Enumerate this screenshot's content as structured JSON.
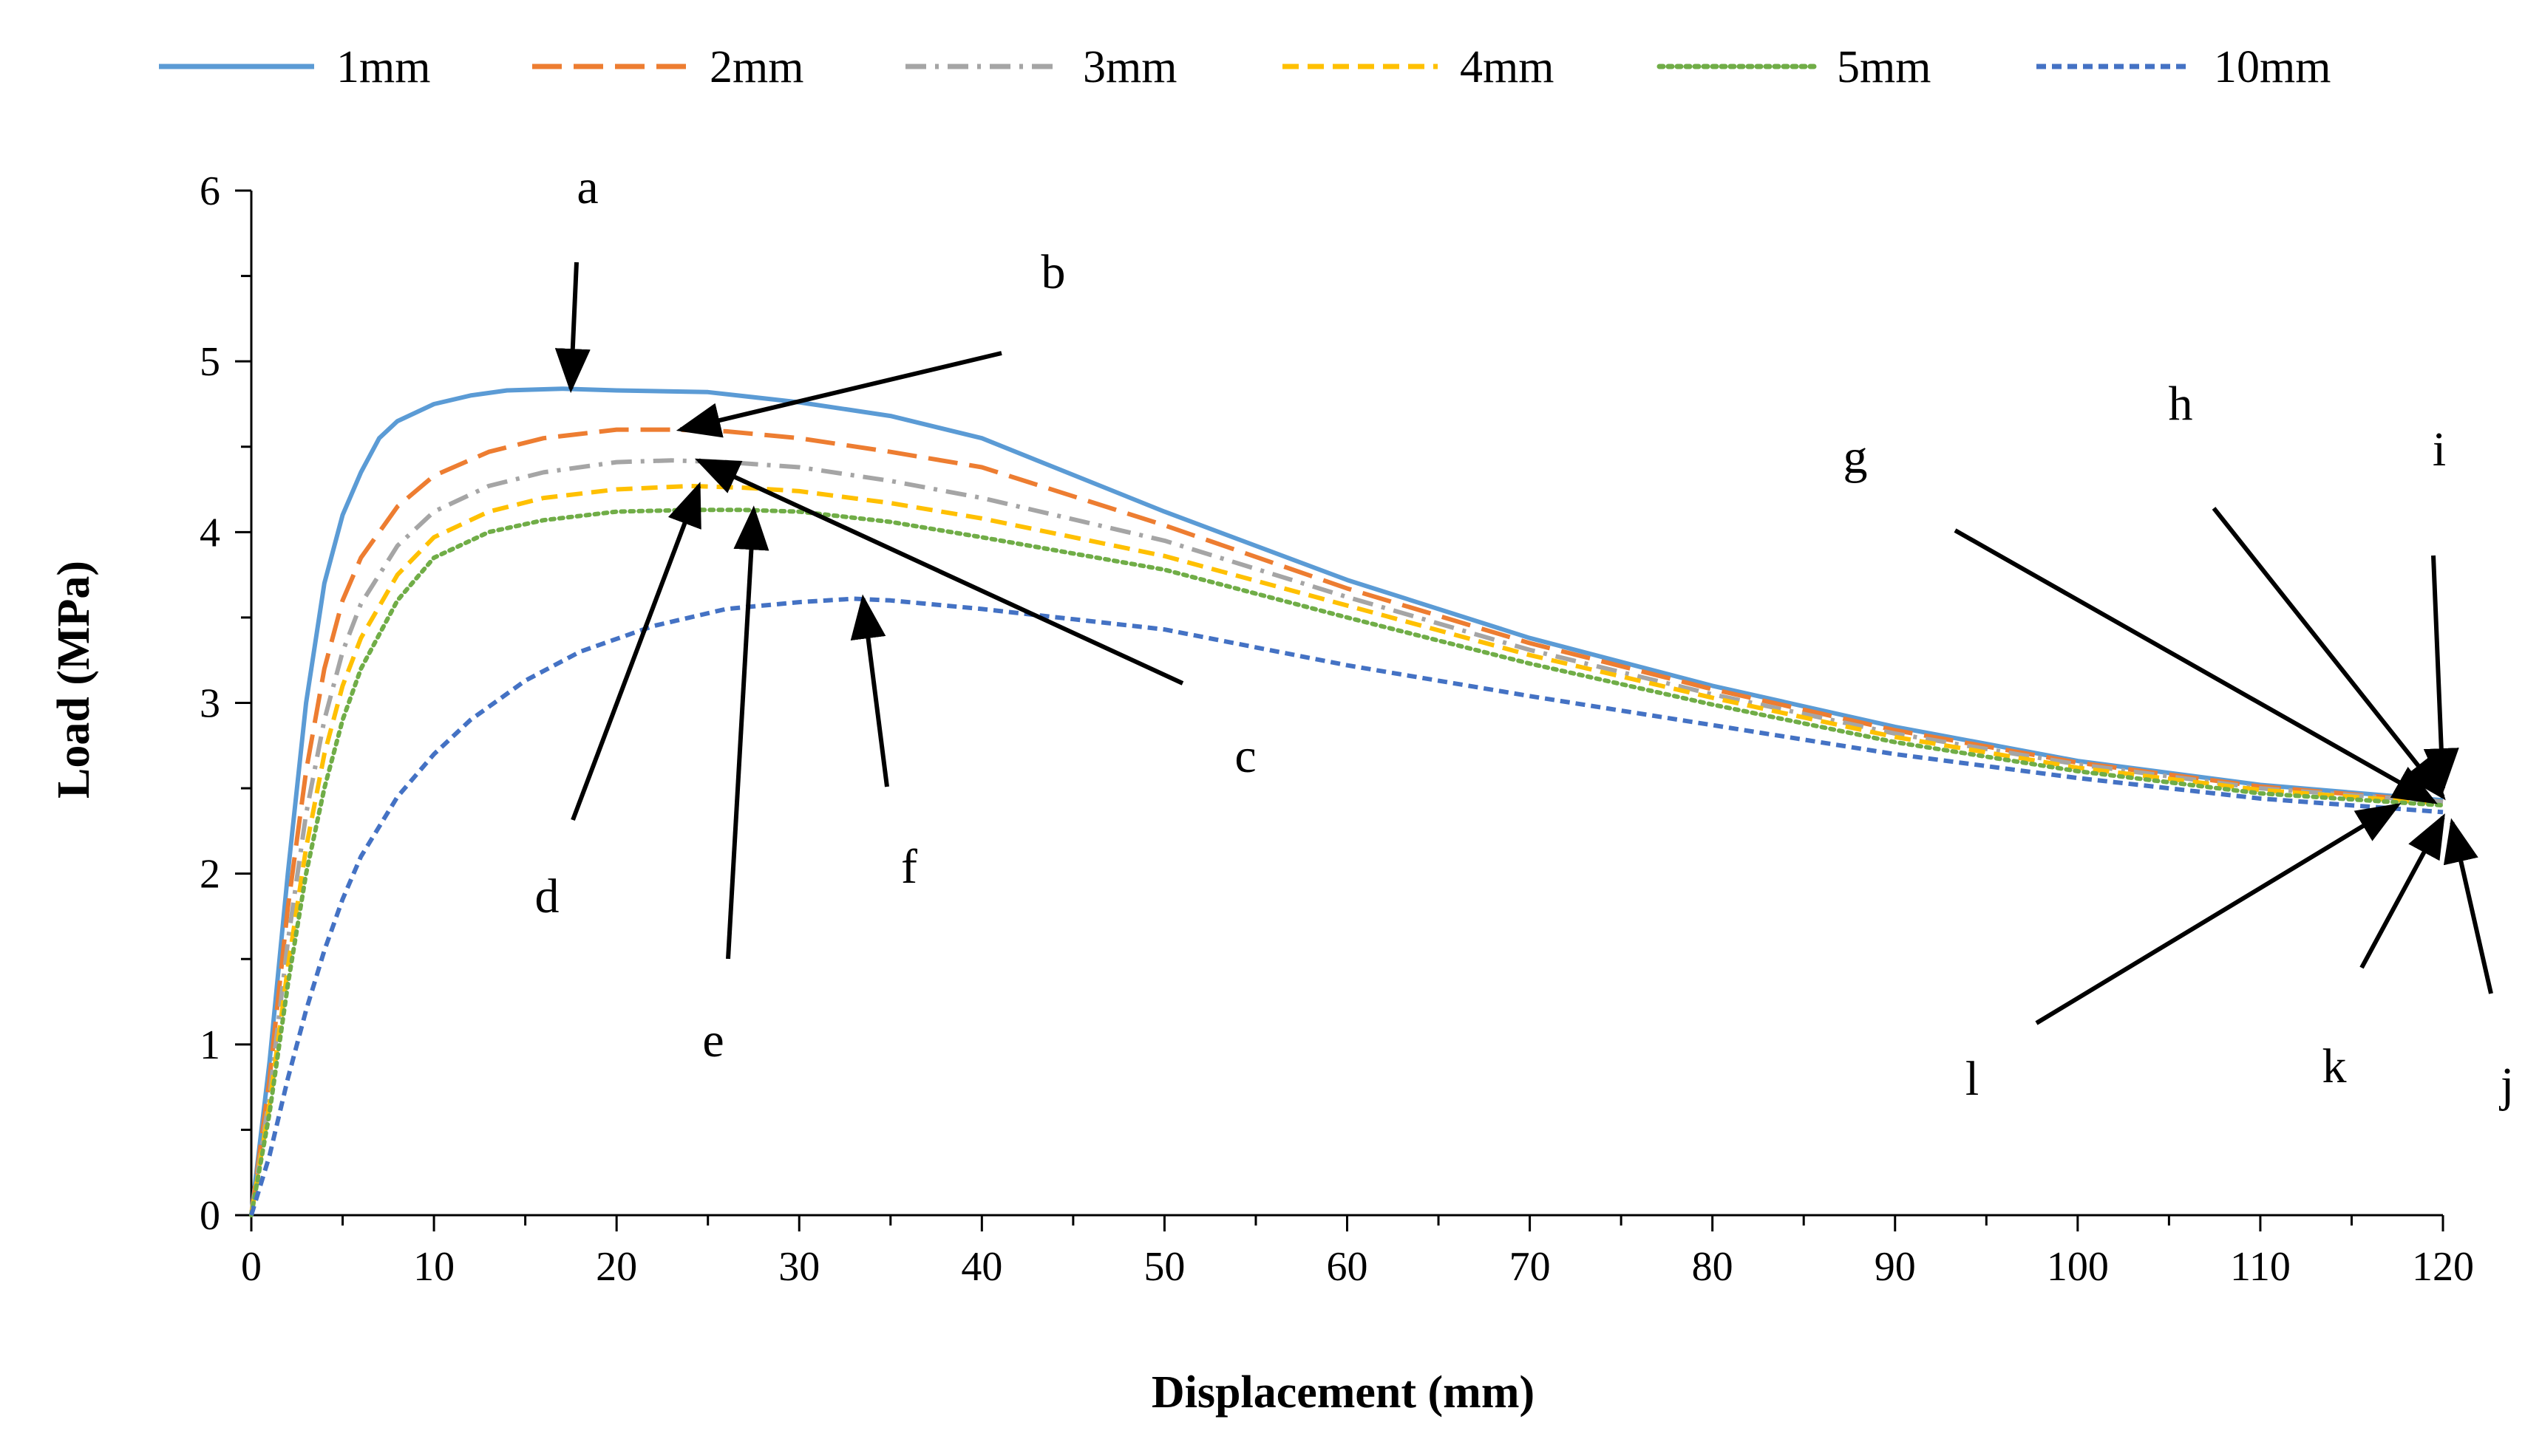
{
  "chart_data": {
    "type": "line",
    "title": "",
    "xlabel": "Displacement (mm)",
    "ylabel": "Load (MPa)",
    "xlim": [
      0,
      120
    ],
    "ylim": [
      0,
      6
    ],
    "xticks": [
      "0",
      "10",
      "20",
      "30",
      "40",
      "50",
      "60",
      "70",
      "80",
      "90",
      "100",
      "110",
      "120"
    ],
    "yticks": [
      "0",
      "1",
      "2",
      "3",
      "4",
      "5",
      "6"
    ],
    "grid": false,
    "legend_position": "top",
    "series": [
      {
        "name": "1mm",
        "color": "#5b9bd5",
        "dash": "solid",
        "x": [
          0,
          1,
          2,
          3,
          4,
          5,
          6,
          7,
          8,
          10,
          12,
          14,
          17,
          20,
          25,
          30,
          35,
          40,
          50,
          60,
          70,
          80,
          90,
          100,
          110,
          120
        ],
        "y": [
          0,
          0.9,
          2.0,
          3.0,
          3.7,
          4.1,
          4.35,
          4.55,
          4.65,
          4.75,
          4.8,
          4.83,
          4.84,
          4.83,
          4.82,
          4.76,
          4.68,
          4.55,
          4.12,
          3.72,
          3.38,
          3.1,
          2.86,
          2.66,
          2.52,
          2.43
        ]
      },
      {
        "name": "2mm",
        "color": "#ed7d31",
        "dash": "long-dash",
        "x": [
          0,
          1,
          2,
          3,
          4,
          5,
          6,
          8,
          10,
          13,
          16,
          20,
          23,
          26,
          30,
          35,
          40,
          50,
          60,
          70,
          80,
          90,
          100,
          110,
          120
        ],
        "y": [
          0,
          0.8,
          1.8,
          2.6,
          3.2,
          3.6,
          3.85,
          4.15,
          4.33,
          4.47,
          4.55,
          4.6,
          4.6,
          4.59,
          4.55,
          4.47,
          4.38,
          4.04,
          3.67,
          3.35,
          3.08,
          2.84,
          2.65,
          2.51,
          2.42
        ]
      },
      {
        "name": "3mm",
        "color": "#a5a5a5",
        "dash": "dash-dot",
        "x": [
          0,
          1,
          2,
          3,
          4,
          5,
          6,
          8,
          10,
          13,
          16,
          20,
          23,
          26,
          30,
          35,
          40,
          50,
          60,
          70,
          80,
          90,
          100,
          110,
          120
        ],
        "y": [
          0,
          0.7,
          1.6,
          2.35,
          2.9,
          3.3,
          3.58,
          3.92,
          4.12,
          4.27,
          4.35,
          4.41,
          4.42,
          4.41,
          4.38,
          4.3,
          4.2,
          3.95,
          3.62,
          3.31,
          3.05,
          2.82,
          2.64,
          2.5,
          2.42
        ]
      },
      {
        "name": "4mm",
        "color": "#ffc000",
        "dash": "dash",
        "x": [
          0,
          1,
          2,
          3,
          4,
          5,
          6,
          8,
          10,
          13,
          16,
          20,
          24,
          27,
          30,
          35,
          40,
          50,
          60,
          70,
          80,
          90,
          100,
          110,
          120
        ],
        "y": [
          0,
          0.65,
          1.45,
          2.15,
          2.7,
          3.1,
          3.38,
          3.75,
          3.97,
          4.12,
          4.2,
          4.25,
          4.27,
          4.26,
          4.24,
          4.17,
          4.08,
          3.86,
          3.57,
          3.28,
          3.03,
          2.8,
          2.62,
          2.49,
          2.41
        ]
      },
      {
        "name": "5mm",
        "color": "#70ad47",
        "dash": "dot",
        "x": [
          0,
          1,
          2,
          3,
          4,
          5,
          6,
          8,
          10,
          13,
          16,
          20,
          24,
          27,
          30,
          35,
          40,
          50,
          60,
          70,
          80,
          90,
          100,
          110,
          120
        ],
        "y": [
          0,
          0.6,
          1.35,
          2.0,
          2.5,
          2.9,
          3.2,
          3.6,
          3.85,
          4.0,
          4.07,
          4.12,
          4.13,
          4.13,
          4.12,
          4.06,
          3.97,
          3.78,
          3.5,
          3.23,
          2.99,
          2.77,
          2.6,
          2.47,
          2.4
        ]
      },
      {
        "name": "10mm",
        "color": "#4472c4",
        "dash": "short-dash",
        "x": [
          0,
          1,
          2,
          3,
          4,
          5,
          6,
          8,
          10,
          12,
          15,
          18,
          22,
          26,
          30,
          33,
          35,
          40,
          45,
          50,
          60,
          70,
          80,
          90,
          100,
          110,
          120
        ],
        "y": [
          0,
          0.35,
          0.8,
          1.2,
          1.55,
          1.85,
          2.1,
          2.45,
          2.7,
          2.9,
          3.13,
          3.3,
          3.45,
          3.55,
          3.59,
          3.61,
          3.6,
          3.55,
          3.49,
          3.43,
          3.22,
          3.04,
          2.87,
          2.7,
          2.56,
          2.44,
          2.36
        ]
      }
    ],
    "annotations": [
      {
        "label": "a",
        "points_to": [
          17.5,
          4.84
        ]
      },
      {
        "label": "b",
        "points_to": [
          23.5,
          4.6
        ]
      },
      {
        "label": "c",
        "points_to": [
          24.5,
          4.42
        ]
      },
      {
        "label": "d",
        "points_to": [
          24.5,
          4.27
        ]
      },
      {
        "label": "e",
        "points_to": [
          27.5,
          4.13
        ]
      },
      {
        "label": "f",
        "points_to": [
          33.5,
          3.61
        ]
      },
      {
        "label": "g",
        "points_to": [
          119.5,
          2.42
        ]
      },
      {
        "label": "h",
        "points_to": [
          120,
          2.45
        ]
      },
      {
        "label": "i",
        "points_to": [
          120,
          2.5
        ]
      },
      {
        "label": "j",
        "points_to": [
          120.5,
          2.3
        ]
      },
      {
        "label": "k",
        "points_to": [
          120,
          2.33
        ]
      },
      {
        "label": "l",
        "points_to": [
          117.5,
          2.4
        ]
      }
    ]
  }
}
